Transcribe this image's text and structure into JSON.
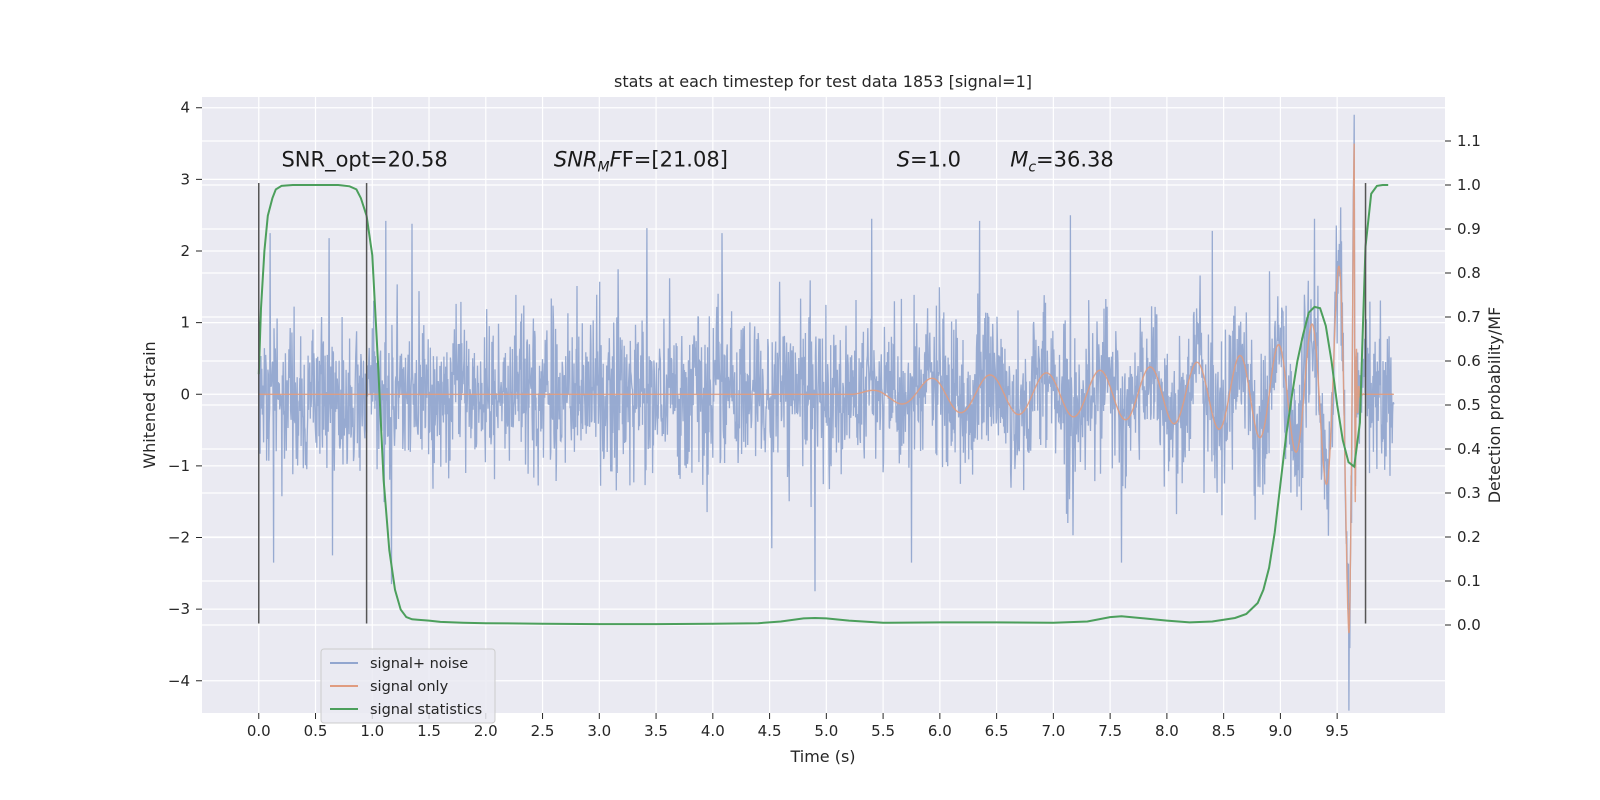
{
  "chart_data": {
    "type": "line",
    "title": "stats at each timestep for test data 1853 [signal=1]",
    "xlabel": "Time (s)",
    "ylabel": "Whitened strain",
    "ylabel_right": "Detection probability/MF",
    "xlim": [
      -0.5,
      10.45
    ],
    "ylim": [
      -4.45,
      4.15
    ],
    "ylim_right": [
      -0.2,
      1.2
    ],
    "x_ticks": [
      0.0,
      0.5,
      1.0,
      1.5,
      2.0,
      2.5,
      3.0,
      3.5,
      4.0,
      4.5,
      5.0,
      5.5,
      6.0,
      6.5,
      7.0,
      7.5,
      8.0,
      8.5,
      9.0,
      9.5
    ],
    "x_tick_labels": [
      "0.0",
      "0.5",
      "1.0",
      "1.5",
      "2.0",
      "2.5",
      "3.0",
      "3.5",
      "4.0",
      "4.5",
      "5.0",
      "5.5",
      "6.0",
      "6.5",
      "7.0",
      "7.5",
      "8.0",
      "8.5",
      "9.0",
      "9.5"
    ],
    "y_ticks": [
      -4,
      -3,
      -2,
      -1,
      0,
      1,
      2,
      3,
      4
    ],
    "y_tick_labels": [
      "−4",
      "−3",
      "−2",
      "−1",
      "0",
      "1",
      "2",
      "3",
      "4"
    ],
    "y_ticks_right": [
      0.0,
      0.1,
      0.2,
      0.3,
      0.4,
      0.5,
      0.6,
      0.7,
      0.8,
      0.9,
      1.0,
      1.1
    ],
    "y_tick_labels_right": [
      "0.0",
      "0.1",
      "0.2",
      "0.3",
      "0.4",
      "0.5",
      "0.6",
      "0.7",
      "0.8",
      "0.9",
      "1.0",
      "1.1"
    ],
    "grid": true,
    "legend_position": "bottom-left",
    "noise_duration": 10.0,
    "noise_amplitude": 1.05,
    "noise_extremes": [
      {
        "t": 0.1,
        "v": 2.25
      },
      {
        "t": 0.13,
        "v": -2.35
      },
      {
        "t": 0.62,
        "v": 2.18
      },
      {
        "t": 0.65,
        "v": -2.25
      },
      {
        "t": 1.12,
        "v": 2.42
      },
      {
        "t": 1.17,
        "v": -2.65
      },
      {
        "t": 1.35,
        "v": 2.38
      },
      {
        "t": 3.42,
        "v": 2.32
      },
      {
        "t": 4.08,
        "v": 2.25
      },
      {
        "t": 4.52,
        "v": -2.15
      },
      {
        "t": 5.4,
        "v": 2.45
      },
      {
        "t": 4.9,
        "v": -2.75
      },
      {
        "t": 5.75,
        "v": -2.35
      },
      {
        "t": 6.35,
        "v": 2.42
      },
      {
        "t": 7.15,
        "v": 2.5
      },
      {
        "t": 7.6,
        "v": -2.35
      },
      {
        "t": 8.4,
        "v": 2.28
      },
      {
        "t": 9.3,
        "v": 2.45
      }
    ],
    "signal_merger_time": 9.65,
    "signal_peak": 3.5,
    "signal_start_time": 5.5,
    "statistics_x": [
      0.0,
      0.02,
      0.05,
      0.08,
      0.12,
      0.15,
      0.2,
      0.3,
      0.4,
      0.5,
      0.6,
      0.7,
      0.8,
      0.86,
      0.9,
      0.95,
      1.0,
      1.05,
      1.1,
      1.15,
      1.2,
      1.25,
      1.3,
      1.35,
      1.4,
      1.5,
      1.6,
      1.8,
      2.0,
      2.5,
      3.0,
      3.5,
      4.0,
      4.4,
      4.6,
      4.8,
      4.9,
      5.0,
      5.2,
      5.5,
      6.0,
      6.5,
      7.0,
      7.3,
      7.5,
      7.6,
      7.8,
      8.0,
      8.2,
      8.4,
      8.6,
      8.7,
      8.8,
      8.85,
      8.9,
      8.95,
      9.0,
      9.05,
      9.1,
      9.15,
      9.2,
      9.25,
      9.3,
      9.35,
      9.4,
      9.45,
      9.5,
      9.55,
      9.6,
      9.65,
      9.7,
      9.72,
      9.75,
      9.8,
      9.85,
      9.9,
      9.95
    ],
    "statistics_y": [
      0.57,
      0.72,
      0.85,
      0.93,
      0.97,
      0.99,
      0.998,
      1.0,
      1.0,
      1.0,
      1.0,
      1.0,
      0.997,
      0.99,
      0.97,
      0.93,
      0.84,
      0.6,
      0.33,
      0.17,
      0.08,
      0.035,
      0.018,
      0.013,
      0.012,
      0.01,
      0.007,
      0.005,
      0.004,
      0.003,
      0.002,
      0.002,
      0.003,
      0.004,
      0.008,
      0.015,
      0.016,
      0.015,
      0.01,
      0.005,
      0.006,
      0.006,
      0.005,
      0.008,
      0.018,
      0.02,
      0.015,
      0.01,
      0.006,
      0.008,
      0.016,
      0.025,
      0.05,
      0.08,
      0.13,
      0.21,
      0.32,
      0.43,
      0.52,
      0.6,
      0.66,
      0.71,
      0.723,
      0.72,
      0.68,
      0.6,
      0.5,
      0.42,
      0.37,
      0.36,
      0.46,
      0.62,
      0.86,
      0.98,
      0.998,
      1.0,
      1.0
    ],
    "markers_x": [
      0.0,
      0.95,
      9.75
    ],
    "marker_ylim": [
      -3.2,
      2.95
    ],
    "annotations": [
      {
        "label": "SNR_opt=20.58",
        "x": 0.2,
        "y": 3.18
      },
      {
        "label": "SNR",
        "sub": "M",
        "rest": "F=[21.08]",
        "x": 2.6,
        "y": 3.18
      },
      {
        "label": "S",
        "rest": "=1.0",
        "x": 5.62,
        "y": 3.18
      },
      {
        "label": "M",
        "sub": "c",
        "rest": "=36.38",
        "x": 6.62,
        "y": 3.18
      }
    ],
    "series": [
      {
        "name": "signal+ noise",
        "color": "#92a6cf"
      },
      {
        "name": "signal only",
        "color": "#e09c80"
      },
      {
        "name": "signal statistics",
        "color": "#4c9f5c"
      }
    ]
  },
  "colors": {
    "plot_bg": "#eaeaf2",
    "grid": "#ffffff",
    "noise": "#92a6cf",
    "signal": "#e09c80",
    "statistics": "#4c9f5c",
    "markers": "#555555"
  }
}
